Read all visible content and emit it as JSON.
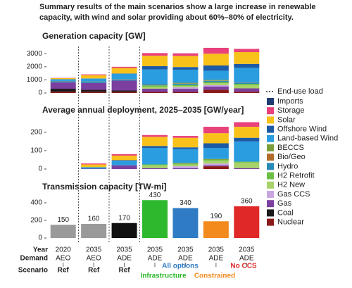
{
  "title_lines": [
    "Summary results of the main scenarios show a large increase in renewable",
    "capacity, with wind and solar providing about 60%–80% of electricity."
  ],
  "chart_data": [
    {
      "type": "stacked_bar",
      "title": "Generation capacity [GW]",
      "ylim": [
        0,
        3500
      ],
      "yticks": [
        0,
        1000,
        2000,
        3000
      ],
      "reference_line": {
        "name": "End-use load",
        "style": "dotted"
      },
      "series": [
        {
          "name": "Imports",
          "color": "#1f3b73",
          "values": [
            0,
            0,
            0,
            0,
            0,
            0,
            0
          ]
        },
        {
          "name": "Storage",
          "color": "#e8417c",
          "values": [
            20,
            60,
            90,
            200,
            200,
            450,
            250
          ]
        },
        {
          "name": "Solar",
          "color": "#f9c21a",
          "values": [
            80,
            250,
            420,
            800,
            850,
            900,
            900
          ]
        },
        {
          "name": "Offshore Wind",
          "color": "#1c5aa6",
          "values": [
            0,
            10,
            30,
            250,
            200,
            400,
            300
          ]
        },
        {
          "name": "Land-based Wind",
          "color": "#2a9de0",
          "values": [
            130,
            220,
            400,
            1100,
            1000,
            700,
            1100
          ]
        },
        {
          "name": "BECCS",
          "color": "#7a9f3a",
          "values": [
            0,
            0,
            0,
            0,
            50,
            50,
            0
          ]
        },
        {
          "name": "Bio/Geo",
          "color": "#b06a2a",
          "values": [
            20,
            20,
            20,
            20,
            20,
            20,
            20
          ]
        },
        {
          "name": "Hydro",
          "color": "#2b8bb8",
          "values": [
            100,
            100,
            100,
            100,
            100,
            100,
            100
          ]
        },
        {
          "name": "H2 Retrofit",
          "color": "#6cbf44",
          "values": [
            0,
            0,
            0,
            100,
            80,
            80,
            100
          ]
        },
        {
          "name": "H2 New",
          "color": "#a8d26a",
          "values": [
            0,
            0,
            0,
            150,
            100,
            150,
            250
          ]
        },
        {
          "name": "Gas CCS",
          "color": "#c9a6e0",
          "values": [
            0,
            0,
            0,
            0,
            100,
            100,
            0
          ]
        },
        {
          "name": "Gas",
          "color": "#7b3fa0",
          "values": [
            480,
            520,
            750,
            250,
            250,
            250,
            250
          ]
        },
        {
          "name": "Coal",
          "color": "#1a1a1a",
          "values": [
            220,
            150,
            100,
            0,
            0,
            0,
            0
          ]
        },
        {
          "name": "Nuclear",
          "color": "#8b1a1a",
          "values": [
            100,
            90,
            90,
            80,
            80,
            250,
            100
          ]
        }
      ]
    },
    {
      "type": "stacked_bar",
      "title": "Average annual deployment, 2025–2035 [GW/year]",
      "ylim": [
        0,
        280
      ],
      "yticks": [
        0,
        100,
        200
      ],
      "series": [
        {
          "name": "Imports",
          "color": "#1f3b73",
          "values": [
            0,
            0,
            0,
            0,
            0,
            0,
            0
          ]
        },
        {
          "name": "Storage",
          "color": "#e8417c",
          "values": [
            0,
            5,
            8,
            10,
            10,
            35,
            25
          ]
        },
        {
          "name": "Solar",
          "color": "#f9c21a",
          "values": [
            0,
            15,
            25,
            50,
            52,
            55,
            60
          ]
        },
        {
          "name": "Offshore Wind",
          "color": "#1c5aa6",
          "values": [
            0,
            0,
            3,
            10,
            10,
            25,
            20
          ]
        },
        {
          "name": "Land-based Wind",
          "color": "#2a9de0",
          "values": [
            0,
            8,
            25,
            90,
            75,
            60,
            110
          ]
        },
        {
          "name": "BECCS",
          "color": "#7a9f3a",
          "values": [
            0,
            0,
            0,
            0,
            5,
            5,
            0
          ]
        },
        {
          "name": "Bio/Geo",
          "color": "#b06a2a",
          "values": [
            0,
            0,
            0,
            0,
            0,
            0,
            0
          ]
        },
        {
          "name": "Hydro",
          "color": "#2b8bb8",
          "values": [
            0,
            0,
            0,
            0,
            0,
            0,
            0
          ]
        },
        {
          "name": "H2 Retrofit",
          "color": "#6cbf44",
          "values": [
            0,
            0,
            0,
            5,
            3,
            5,
            5
          ]
        },
        {
          "name": "H2 New",
          "color": "#a8d26a",
          "values": [
            0,
            0,
            0,
            15,
            10,
            15,
            30
          ]
        },
        {
          "name": "Gas CCS",
          "color": "#c9a6e0",
          "values": [
            0,
            0,
            0,
            0,
            10,
            10,
            0
          ]
        },
        {
          "name": "Gas",
          "color": "#7b3fa0",
          "values": [
            0,
            2,
            20,
            5,
            5,
            5,
            5
          ]
        },
        {
          "name": "Coal",
          "color": "#1a1a1a",
          "values": [
            0,
            0,
            0,
            0,
            0,
            0,
            0
          ]
        },
        {
          "name": "Nuclear",
          "color": "#8b1a1a",
          "values": [
            0,
            0,
            0,
            0,
            0,
            15,
            0
          ]
        }
      ]
    },
    {
      "type": "bar",
      "title": "Transmission capacity [TW-mi]",
      "ylim": [
        0,
        480
      ],
      "yticks": [
        0,
        200,
        400
      ],
      "values": [
        150,
        160,
        170,
        430,
        340,
        190,
        360
      ],
      "colors": [
        "#9a9a9a",
        "#9a9a9a",
        "#111111",
        "#2eb82e",
        "#2f7cc4",
        "#f28a1e",
        "#e02828"
      ]
    }
  ],
  "columns": {
    "row_labels": [
      "Year",
      "Demand",
      "Scenario"
    ],
    "year": [
      "2020",
      "2035",
      "2035",
      "2035",
      "2035",
      "2035",
      "2035"
    ],
    "demand": [
      "AEO",
      "AEO",
      "ADE",
      "ADE",
      "ADE",
      "ADE",
      "ADE"
    ],
    "scenario": [
      "Ref",
      "Ref",
      "Ref",
      null,
      null,
      null,
      null
    ]
  },
  "scenario_groups": [
    {
      "label": "Infrastructure",
      "color": "#2eb82e"
    },
    {
      "label": "All options",
      "color": "#2f7cc4"
    },
    {
      "label": "Constrained",
      "color": "#f28a1e"
    },
    {
      "label": "No CCS",
      "color": "#e02828"
    }
  ]
}
